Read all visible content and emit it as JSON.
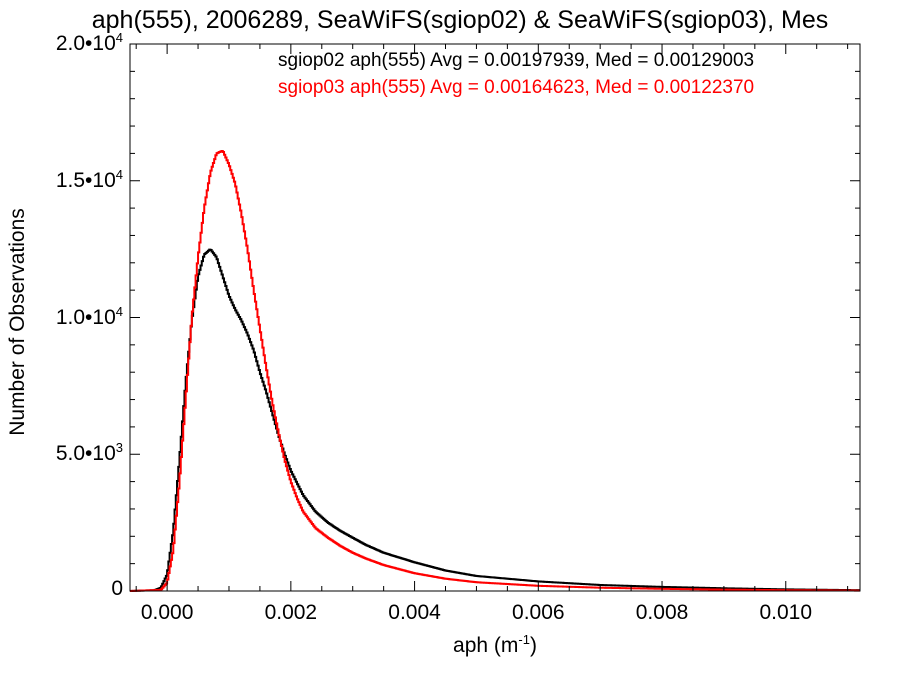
{
  "chart_data": {
    "type": "line",
    "title": "aph(555), 2006289, SeaWiFS(sgiop02) & SeaWiFS(sgiop03), Mes",
    "xlabel": "aph (m",
    "xlabel_exp": "-1",
    "xlabel_close": ")",
    "ylabel": "Number of Observations",
    "xlim": [
      -0.0006,
      0.0112
    ],
    "ylim": [
      0,
      20000
    ],
    "xticks": [
      0.0,
      0.002,
      0.004,
      0.006,
      0.008,
      0.01
    ],
    "xtick_labels": [
      "0.000",
      "0.002",
      "0.004",
      "0.006",
      "0.008",
      "0.010"
    ],
    "yticks": [
      {
        "value": 0,
        "mantissa": "0",
        "exp": ""
      },
      {
        "value": 5000,
        "mantissa": "5.0•10",
        "exp": "3"
      },
      {
        "value": 10000,
        "mantissa": "1.0•10",
        "exp": "4"
      },
      {
        "value": 15000,
        "mantissa": "1.5•10",
        "exp": "4"
      },
      {
        "value": 20000,
        "mantissa": "2.0•10",
        "exp": "4"
      }
    ],
    "legend_position": "top-right",
    "series": [
      {
        "name": "sgiop02 aph(555) Avg = 0.00197939, Med = 0.00129003",
        "color": "#000000",
        "x": [
          -0.0006,
          -0.0002,
          -0.0001,
          0.0,
          0.0001,
          0.0002,
          0.0003,
          0.0004,
          0.0005,
          0.0006,
          0.0007,
          0.0008,
          0.0009,
          0.001,
          0.0011,
          0.0012,
          0.0013,
          0.0014,
          0.0015,
          0.0016,
          0.0017,
          0.0018,
          0.0019,
          0.002,
          0.0022,
          0.0024,
          0.0026,
          0.0028,
          0.003,
          0.0032,
          0.0035,
          0.004,
          0.0045,
          0.005,
          0.006,
          0.007,
          0.008,
          0.009,
          0.01,
          0.0112
        ],
        "y": [
          0,
          30,
          120,
          600,
          2200,
          4800,
          7600,
          9900,
          11500,
          12300,
          12500,
          12200,
          11500,
          10800,
          10300,
          9900,
          9400,
          8800,
          8000,
          7300,
          6500,
          5700,
          5000,
          4400,
          3500,
          2900,
          2500,
          2200,
          1950,
          1700,
          1400,
          1050,
          750,
          550,
          350,
          220,
          150,
          100,
          60,
          30
        ]
      },
      {
        "name": "sgiop03 aph(555) Avg = 0.00164623, Med = 0.00122370",
        "color": "#ff0000",
        "x": [
          -0.0006,
          -0.0001,
          0.0,
          0.0001,
          0.0002,
          0.0003,
          0.0004,
          0.0005,
          0.0006,
          0.0007,
          0.0008,
          0.0009,
          0.001,
          0.0011,
          0.0012,
          0.0013,
          0.0014,
          0.0015,
          0.0016,
          0.0017,
          0.0018,
          0.0019,
          0.002,
          0.0021,
          0.0022,
          0.0024,
          0.0026,
          0.0028,
          0.003,
          0.0032,
          0.0035,
          0.004,
          0.0045,
          0.005,
          0.006,
          0.007,
          0.008,
          0.009,
          0.01,
          0.0112
        ],
        "y": [
          0,
          40,
          300,
          1500,
          4000,
          7000,
          10000,
          12200,
          14000,
          15300,
          16000,
          16100,
          15600,
          14900,
          13800,
          12500,
          11000,
          9600,
          8200,
          6900,
          5800,
          4800,
          4000,
          3400,
          2900,
          2300,
          1950,
          1650,
          1400,
          1200,
          950,
          650,
          450,
          320,
          190,
          120,
          80,
          50,
          30,
          15
        ]
      }
    ]
  }
}
